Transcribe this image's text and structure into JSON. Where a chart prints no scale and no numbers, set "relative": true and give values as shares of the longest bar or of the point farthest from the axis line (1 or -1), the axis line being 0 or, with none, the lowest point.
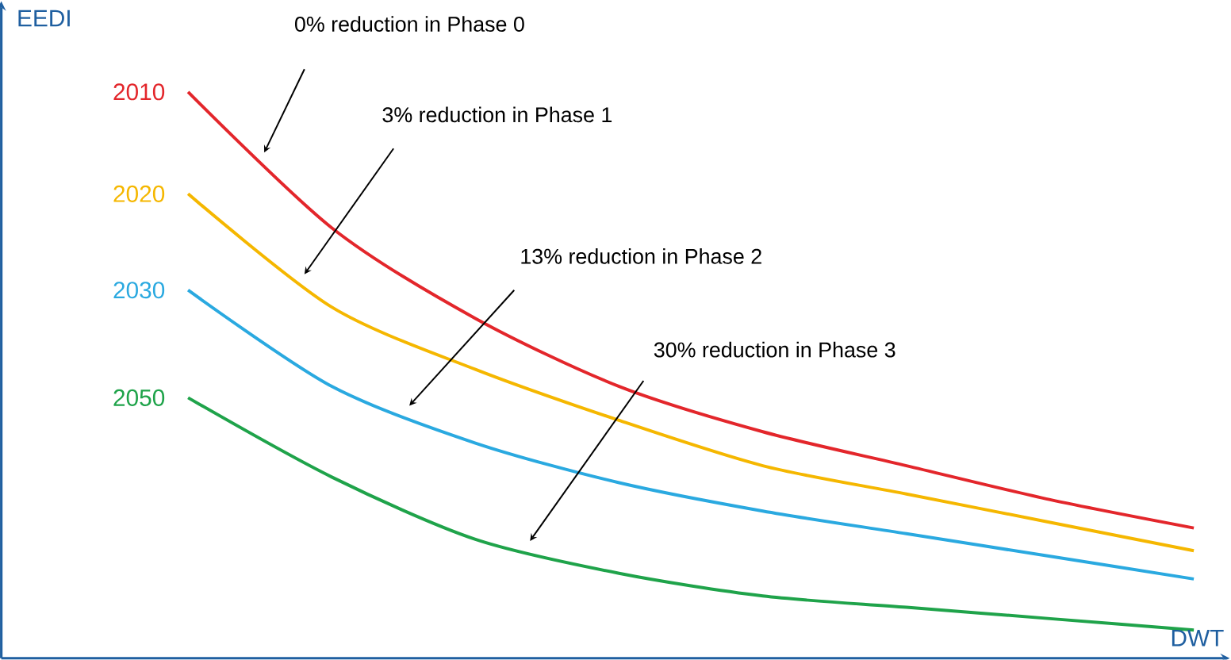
{
  "chart_data": {
    "type": "line",
    "relative": true,
    "xlabel": "DWT",
    "ylabel": "EEDI",
    "categories": [
      null,
      null,
      null,
      null,
      null,
      null,
      null,
      null
    ],
    "series": [
      {
        "name": "2010",
        "color": "#e3262b",
        "values": [
          1.0,
          0.76,
          0.6,
          0.48,
          0.4,
          0.34,
          0.28,
          0.23
        ]
      },
      {
        "name": "2020",
        "color": "#f5b700",
        "values": [
          0.82,
          0.62,
          0.51,
          0.42,
          0.34,
          0.29,
          0.24,
          0.19
        ]
      },
      {
        "name": "2030",
        "color": "#2aa9e0",
        "values": [
          0.65,
          0.48,
          0.38,
          0.31,
          0.26,
          0.22,
          0.18,
          0.14
        ]
      },
      {
        "name": "2050",
        "color": "#1fa34a",
        "values": [
          0.46,
          0.32,
          0.21,
          0.15,
          0.11,
          0.09,
          0.07,
          0.05
        ]
      }
    ],
    "annotations": [
      "0% reduction in Phase 0",
      "3% reduction in Phase 1",
      "13% reduction in Phase 2",
      "30% reduction in Phase 3"
    ]
  }
}
